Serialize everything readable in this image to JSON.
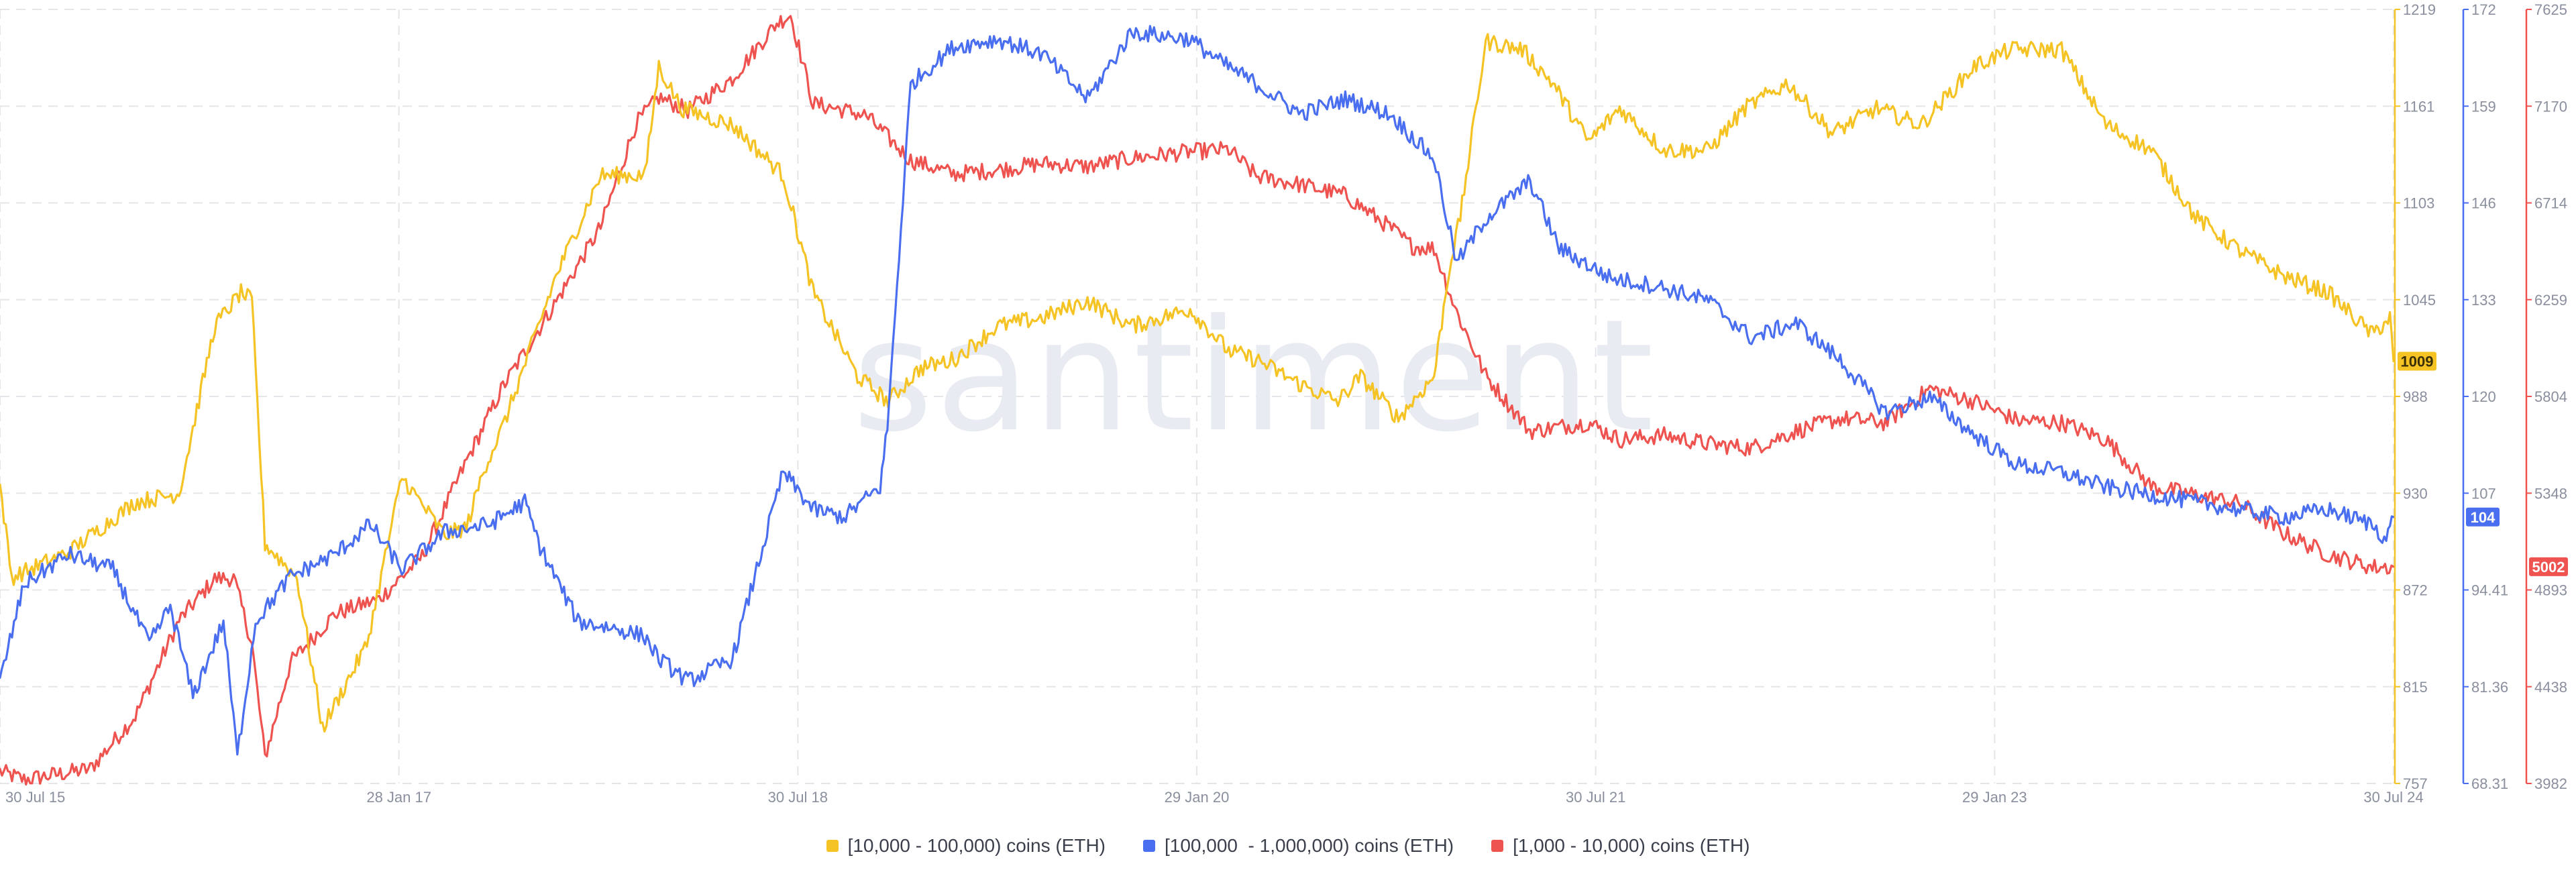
{
  "watermark": "santiment",
  "chart_data": {
    "type": "line",
    "x_ticks": [
      "30 Jul 15",
      "28 Jan 17",
      "30 Jul 18",
      "29 Jan 20",
      "30 Jul 21",
      "29 Jan 23",
      "30 Jul 24"
    ],
    "x_range": [
      "2015-07-30",
      "2024-07-30"
    ],
    "grid": true,
    "legend_position": "bottom",
    "axes": [
      {
        "series": "[10,000 - 100,000) coins (ETH)",
        "color": "#f5c324",
        "ylim": [
          757,
          1219
        ],
        "ticks": [
          "1219",
          "1161",
          "1103",
          "1045",
          "988",
          "930",
          "872",
          "815",
          "757"
        ],
        "current_value": "1009"
      },
      {
        "series": "[100,000  - 1,000,000) coins (ETH)",
        "color": "#4a6ef0",
        "ylim": [
          68.31,
          172
        ],
        "ticks": [
          "172",
          "159",
          "146",
          "133",
          "120",
          "107",
          "94.41",
          "81.36",
          "68.31"
        ],
        "current_value": "104"
      },
      {
        "series": "[1,000 - 10,000) coins (ETH)",
        "color": "#ef5350",
        "ylim": [
          3982,
          7625
        ],
        "ticks": [
          "7625",
          "7170",
          "6714",
          "6259",
          "5804",
          "5348",
          "4893",
          "4438",
          "3982"
        ],
        "current_value": "5002"
      }
    ],
    "series": [
      {
        "name": "[10,000 - 100,000) coins (ETH)",
        "axis": 0,
        "color": "#f5c324",
        "x": [
          "2015-07-30",
          "2015-08-15",
          "2015-11-01",
          "2016-02-01",
          "2016-04-01",
          "2016-05-20",
          "2016-06-25",
          "2016-07-10",
          "2016-07-28",
          "2016-09-10",
          "2016-10-15",
          "2016-12-15",
          "2017-02-01",
          "2017-04-01",
          "2017-05-01",
          "2017-05-25",
          "2017-06-20",
          "2017-09-01",
          "2017-11-01",
          "2018-01-01",
          "2018-01-20",
          "2018-02-20",
          "2018-05-01",
          "2018-07-10",
          "2018-08-20",
          "2018-10-20",
          "2018-12-01",
          "2019-01-15",
          "2019-03-01",
          "2019-05-01",
          "2019-07-01",
          "2019-09-01",
          "2019-11-01",
          "2020-01-20",
          "2020-03-13",
          "2020-04-20",
          "2020-06-20",
          "2020-08-10",
          "2020-09-10",
          "2020-11-01",
          "2020-12-20",
          "2021-01-10",
          "2021-01-25",
          "2021-03-01",
          "2021-04-20",
          "2021-06-01",
          "2021-07-20",
          "2021-09-01",
          "2021-11-01",
          "2022-01-01",
          "2022-02-20",
          "2022-04-20",
          "2022-06-20",
          "2022-08-20",
          "2022-10-20",
          "2023-01-01",
          "2023-02-20",
          "2023-05-01",
          "2023-07-01",
          "2023-09-01",
          "2023-11-01",
          "2024-01-01",
          "2024-03-01",
          "2024-05-01",
          "2024-07-01",
          "2024-07-25",
          "2024-07-30"
        ],
        "values": [
          935,
          880,
          895,
          925,
          930,
          1030,
          1050,
          1045,
          900,
          880,
          790,
          840,
          940,
          905,
          910,
          945,
          970,
          1060,
          1120,
          1120,
          1185,
          1160,
          1150,
          1120,
          1050,
          1000,
          985,
          1005,
          1010,
          1030,
          1035,
          1045,
          1030,
          1040,
          1015,
          1010,
          995,
          985,
          1000,
          975,
          1000,
          1065,
          1095,
          1200,
          1195,
          1175,
          1140,
          1160,
          1135,
          1135,
          1160,
          1175,
          1145,
          1160,
          1150,
          1185,
          1195,
          1195,
          1150,
          1135,
          1095,
          1075,
          1060,
          1050,
          1025,
          1035,
          1009
        ]
      },
      {
        "name": "[100,000  - 1,000,000) coins (ETH)",
        "axis": 1,
        "color": "#4a6ef0",
        "x": [
          "2015-07-30",
          "2015-09-01",
          "2015-11-01",
          "2016-01-01",
          "2016-02-20",
          "2016-03-20",
          "2016-04-20",
          "2016-06-01",
          "2016-06-20",
          "2016-07-15",
          "2016-09-01",
          "2016-11-01",
          "2016-12-20",
          "2017-02-01",
          "2017-04-01",
          "2017-06-01",
          "2017-07-20",
          "2017-08-10",
          "2017-10-01",
          "2017-11-25",
          "2018-01-01",
          "2018-01-20",
          "2018-03-01",
          "2018-05-01",
          "2018-07-10",
          "2018-08-20",
          "2018-10-01",
          "2018-11-20",
          "2018-11-30",
          "2019-01-01",
          "2019-03-01",
          "2019-05-01",
          "2019-07-01",
          "2019-09-01",
          "2019-11-01",
          "2020-01-20",
          "2020-03-01",
          "2020-04-20",
          "2020-06-20",
          "2020-08-20",
          "2020-10-20",
          "2020-12-20",
          "2021-01-20",
          "2021-03-01",
          "2021-05-01",
          "2021-06-10",
          "2021-08-20",
          "2021-10-20",
          "2022-01-01",
          "2022-03-01",
          "2022-05-01",
          "2022-07-01",
          "2022-09-01",
          "2022-11-01",
          "2023-01-01",
          "2023-03-01",
          "2023-05-01",
          "2023-07-01",
          "2023-09-01",
          "2023-11-01",
          "2024-01-01",
          "2024-03-01",
          "2024-05-01",
          "2024-07-01",
          "2024-07-20",
          "2024-07-30"
        ],
        "values": [
          82,
          95,
          99,
          97,
          87,
          92,
          80,
          90,
          72,
          90,
          96,
          99,
          103,
          97,
          102,
          103,
          106,
          100,
          90,
          89,
          88,
          85,
          82,
          85,
          110,
          105,
          104,
          108,
          116,
          162,
          167,
          168,
          166,
          160,
          169,
          168,
          165,
          162,
          158,
          160,
          158,
          152,
          138,
          144,
          149,
          140,
          136,
          135,
          133,
          128,
          130,
          125,
          118,
          120,
          115,
          111,
          110,
          108,
          107,
          106,
          105,
          104,
          105,
          103,
          101,
          104
        ]
      },
      {
        "name": "[1,000 - 10,000) coins (ETH)",
        "axis": 2,
        "color": "#ef5350",
        "x": [
          "2015-07-30",
          "2015-09-01",
          "2015-12-01",
          "2016-02-01",
          "2016-04-01",
          "2016-05-20",
          "2016-06-15",
          "2016-07-10",
          "2016-07-28",
          "2016-09-01",
          "2016-11-01",
          "2017-01-01",
          "2017-03-01",
          "2017-05-01",
          "2017-06-20",
          "2017-09-01",
          "2017-11-01",
          "2017-12-20",
          "2018-01-20",
          "2018-03-01",
          "2018-05-01",
          "2018-07-01",
          "2018-07-20",
          "2018-08-20",
          "2018-09-20",
          "2018-11-01",
          "2019-01-01",
          "2019-03-01",
          "2019-05-01",
          "2019-07-01",
          "2019-09-01",
          "2019-11-01",
          "2020-01-20",
          "2020-03-13",
          "2020-04-20",
          "2020-06-20",
          "2020-08-20",
          "2020-10-20",
          "2020-11-20",
          "2020-12-20",
          "2021-01-20",
          "2021-03-01",
          "2021-05-01",
          "2021-07-20",
          "2021-09-01",
          "2021-11-01",
          "2022-01-01",
          "2022-03-01",
          "2022-05-01",
          "2022-07-01",
          "2022-09-01",
          "2022-11-01",
          "2023-01-01",
          "2023-03-01",
          "2023-05-01",
          "2023-07-01",
          "2023-09-01",
          "2023-11-01",
          "2024-01-01",
          "2024-03-01",
          "2024-05-01",
          "2024-07-01",
          "2024-07-30"
        ],
        "values": [
          4038,
          4000,
          4050,
          4300,
          4750,
          4945,
          4950,
          4640,
          4105,
          4550,
          4780,
          4850,
          5050,
          5500,
          5850,
          6250,
          6600,
          7090,
          7210,
          7150,
          7300,
          7560,
          7600,
          7180,
          7160,
          7125,
          6915,
          6850,
          6870,
          6900,
          6885,
          6925,
          6955,
          6965,
          6840,
          6800,
          6750,
          6600,
          6510,
          6500,
          6200,
          5900,
          5640,
          5680,
          5600,
          5620,
          5580,
          5560,
          5640,
          5700,
          5680,
          5840,
          5780,
          5690,
          5680,
          5600,
          5380,
          5340,
          5300,
          5160,
          5060,
          5000,
          5002
        ]
      }
    ]
  }
}
